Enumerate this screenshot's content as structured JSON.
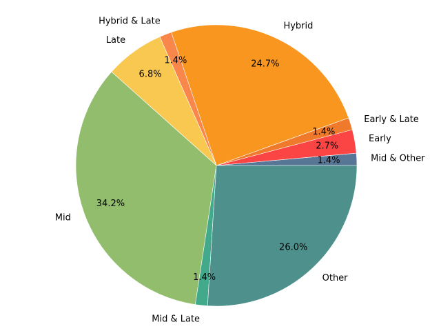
{
  "chart_data": {
    "type": "pie",
    "title": "",
    "start_angle_deg": 0,
    "direction": "counterclockwise",
    "slices": [
      {
        "label": "Mid & Other",
        "value": 1.4,
        "pct_label": "1.4%",
        "color": "#587695"
      },
      {
        "label": "Early",
        "value": 2.7,
        "pct_label": "2.7%",
        "color": "#fb4545"
      },
      {
        "label": "Early & Late",
        "value": 1.4,
        "pct_label": "1.4%",
        "color": "#f07a2b"
      },
      {
        "label": "Hybrid",
        "value": 24.7,
        "pct_label": "24.7%",
        "color": "#f8961f"
      },
      {
        "label": "Hybrid & Late",
        "value": 1.4,
        "pct_label": "1.4%",
        "color": "#f9864a"
      },
      {
        "label": "Late",
        "value": 6.8,
        "pct_label": "6.8%",
        "color": "#f9c850"
      },
      {
        "label": "Mid",
        "value": 34.2,
        "pct_label": "34.2%",
        "color": "#91bd6c"
      },
      {
        "label": "Mid & Late",
        "value": 1.4,
        "pct_label": "1.4%",
        "color": "#42aa8a"
      },
      {
        "label": "Other",
        "value": 26.0,
        "pct_label": "26.0%",
        "color": "#4e908c"
      }
    ]
  }
}
